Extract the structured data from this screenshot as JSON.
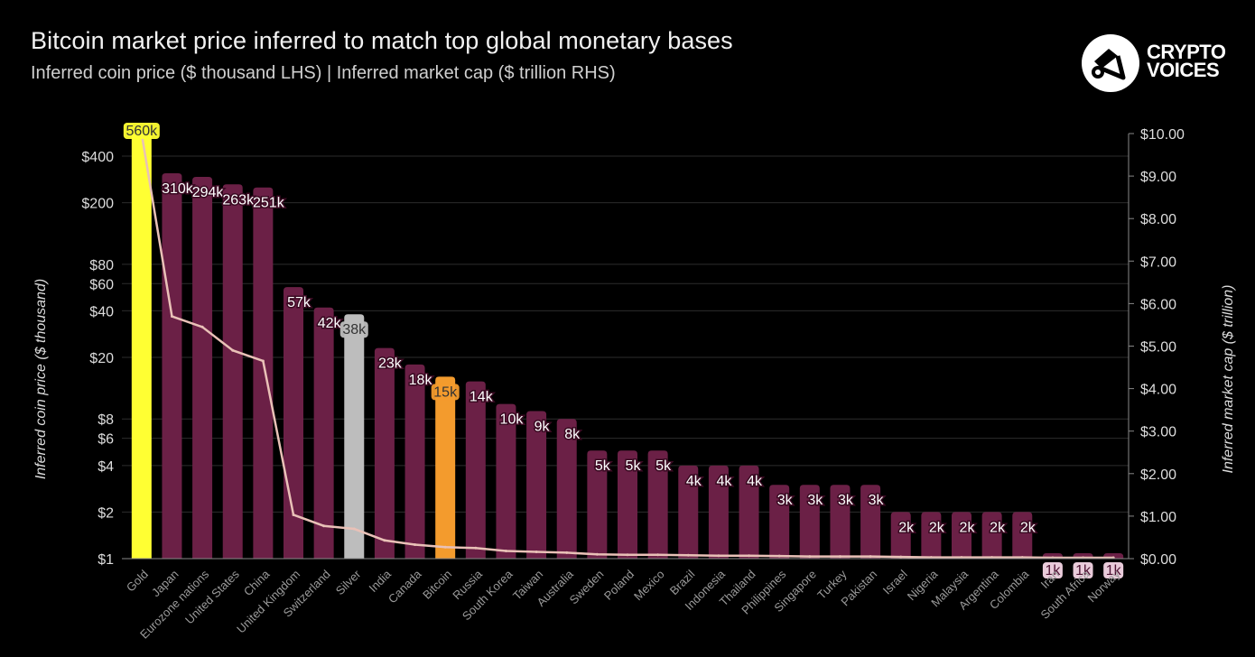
{
  "header": {
    "title": "Bitcoin market price inferred to match top global monetary bases",
    "subtitle": "Inferred coin price ($ thousand LHS) | Inferred market cap ($ trillion RHS)"
  },
  "brand": {
    "line1": "CRYPTO",
    "line2": "VOICES",
    "icon": "crypto-voices-logo-icon"
  },
  "colors": {
    "bar": "#6b2046",
    "gold": "#ffff33",
    "silver": "#bdbdbd",
    "bitcoin": "#f39b2d",
    "line": "#e9c1b7",
    "grid": "#2c2c2c",
    "label_bg": "#f6d6e6",
    "label_text": "#4a1030"
  },
  "chart_data": {
    "type": "bar",
    "title": "Bitcoin market price inferred to match top global monetary bases",
    "ylabel": "Inferred coin price ($ thousand)",
    "y2label": "Inferred market cap ($ trillion)",
    "yscale": "log",
    "ylim": [
      1,
      560
    ],
    "y2lim": [
      0,
      10
    ],
    "y_ticks": [
      1,
      2,
      4,
      6,
      8,
      20,
      40,
      60,
      80,
      200,
      400
    ],
    "y_tick_labels": [
      "$1",
      "$2",
      "$4",
      "$6",
      "$8",
      "$20",
      "$40",
      "$60",
      "$80",
      "$200",
      "$400"
    ],
    "y2_ticks": [
      0,
      1,
      2,
      3,
      4,
      5,
      6,
      7,
      8,
      9,
      10
    ],
    "y2_tick_labels": [
      "$0.00",
      "$1.00",
      "$2.00",
      "$3.00",
      "$4.00",
      "$5.00",
      "$6.00",
      "$7.00",
      "$8.00",
      "$9.00",
      "$10.00"
    ],
    "categories": [
      "Gold",
      "Japan",
      "Eurozone nations",
      "United States",
      "China",
      "United Kingdom",
      "Switzerland",
      "Silver",
      "India",
      "Canada",
      "Bitcoin",
      "Russia",
      "South Korea",
      "Taiwan",
      "Australia",
      "Sweden",
      "Poland",
      "Mexico",
      "Brazil",
      "Indonesia",
      "Thailand",
      "Philippines",
      "Singapore",
      "Turkey",
      "Pakistan",
      "Israel",
      "Nigeria",
      "Malaysia",
      "Argentina",
      "Colombia",
      "Iran",
      "South Africa",
      "Norway"
    ],
    "series": [
      {
        "name": "Inferred coin price ($ thousand)",
        "type": "bar",
        "values": [
          560,
          310,
          294,
          263,
          251,
          57,
          42,
          38,
          23,
          18,
          15,
          14,
          10,
          9,
          8,
          5,
          5,
          5,
          4,
          4,
          4,
          3,
          3,
          3,
          3,
          2,
          2,
          2,
          2,
          2,
          1,
          1,
          1
        ],
        "labels": [
          "560k",
          "310k",
          "294k",
          "263k",
          "251k",
          "57k",
          "42k",
          "38k",
          "23k",
          "18k",
          "15k",
          "14k",
          "10k",
          "9k",
          "8k",
          "5k",
          "5k",
          "5k",
          "4k",
          "4k",
          "4k",
          "3k",
          "3k",
          "3k",
          "3k",
          "2k",
          "2k",
          "2k",
          "2k",
          "2k",
          "1k",
          "1k",
          "1k"
        ]
      },
      {
        "name": "Inferred market cap ($ trillion)",
        "type": "line",
        "axis": "right",
        "values": [
          10.0,
          5.7,
          5.45,
          4.9,
          4.65,
          1.03,
          0.77,
          0.7,
          0.43,
          0.33,
          0.27,
          0.25,
          0.18,
          0.16,
          0.14,
          0.1,
          0.09,
          0.09,
          0.08,
          0.07,
          0.07,
          0.06,
          0.05,
          0.05,
          0.05,
          0.04,
          0.03,
          0.03,
          0.03,
          0.03,
          0.02,
          0.02,
          0.02
        ]
      }
    ],
    "highlight": {
      "Gold": "gold",
      "Silver": "silver",
      "Bitcoin": "bitcoin"
    },
    "grid": true
  }
}
